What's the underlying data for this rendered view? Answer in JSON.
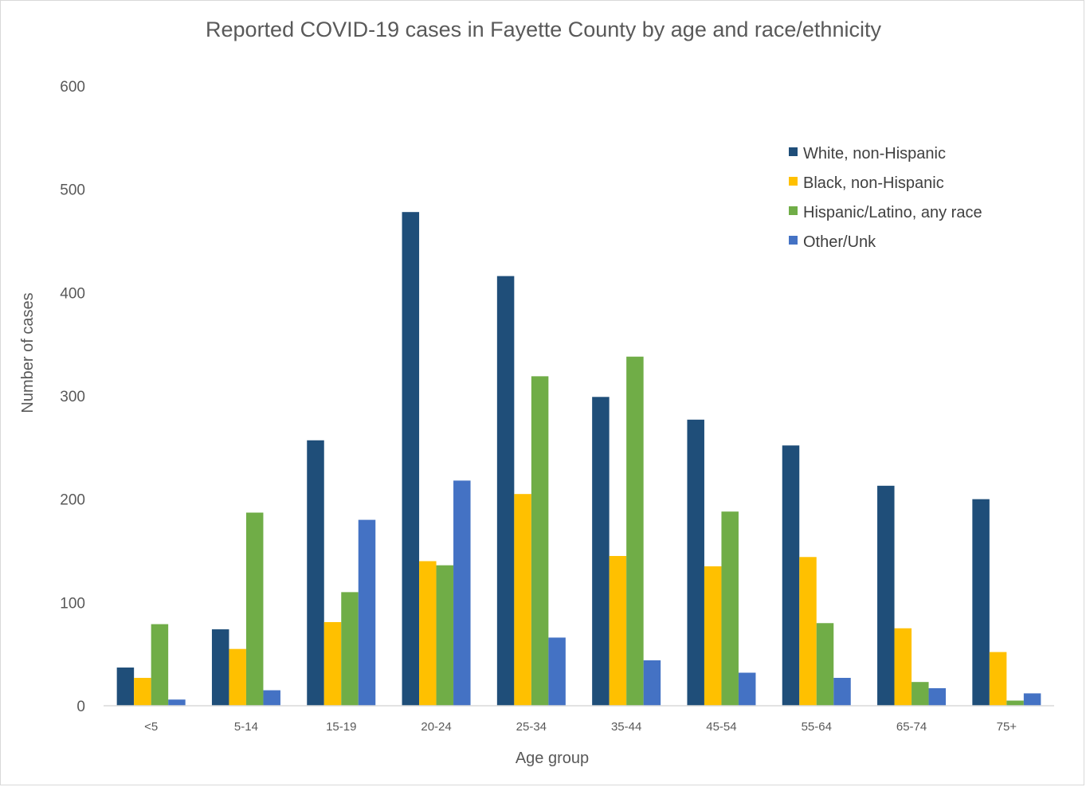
{
  "chart_data": {
    "type": "bar",
    "title": "Reported COVID-19 cases in Fayette County by age and race/ethnicity",
    "xlabel": "Age group",
    "ylabel": "Number of cases",
    "ylim": [
      0,
      600
    ],
    "yticks": [
      0,
      100,
      200,
      300,
      400,
      500,
      600
    ],
    "grid": false,
    "legend_position": "top-right",
    "categories": [
      "<5",
      "5-14",
      "15-19",
      "20-24",
      "25-34",
      "35-44",
      "45-54",
      "55-64",
      "65-74",
      "75+"
    ],
    "series": [
      {
        "name": "White, non-Hispanic",
        "color": "#1f4e79",
        "values": [
          37,
          74,
          257,
          478,
          416,
          299,
          277,
          252,
          213,
          200
        ]
      },
      {
        "name": "Black, non-Hispanic",
        "color": "#ffc000",
        "values": [
          27,
          55,
          81,
          140,
          205,
          145,
          135,
          144,
          75,
          52
        ]
      },
      {
        "name": "Hispanic/Latino, any race",
        "color": "#70ad47",
        "values": [
          79,
          187,
          110,
          136,
          319,
          338,
          188,
          80,
          23,
          5
        ]
      },
      {
        "name": "Other/Unk",
        "color": "#4472c4",
        "values": [
          6,
          15,
          180,
          218,
          66,
          44,
          32,
          27,
          17,
          12
        ]
      }
    ]
  }
}
